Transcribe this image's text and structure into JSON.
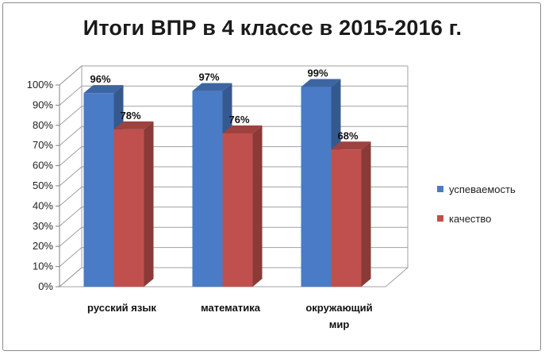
{
  "chart_data": {
    "type": "bar",
    "title": "Итоги ВПР в 4 классе в 2015-2016 г.",
    "categories": [
      [
        "русский язык"
      ],
      [
        "математика"
      ],
      [
        "окружающий",
        "мир"
      ]
    ],
    "series": [
      {
        "name": "успеваемость",
        "values": [
          96,
          97,
          99
        ],
        "labels": [
          "96%",
          "97%",
          "99%"
        ],
        "color": "#4a7bc6"
      },
      {
        "name": "качество",
        "values": [
          78,
          76,
          68
        ],
        "labels": [
          "78%",
          "76%",
          "68%"
        ],
        "color": "#c0504d"
      }
    ],
    "ylim": [
      0,
      100
    ],
    "yticks": [
      "0%",
      "10%",
      "20%",
      "30%",
      "40%",
      "50%",
      "60%",
      "70%",
      "80%",
      "90%",
      "100%"
    ],
    "grid": true,
    "legend_position": "right"
  }
}
